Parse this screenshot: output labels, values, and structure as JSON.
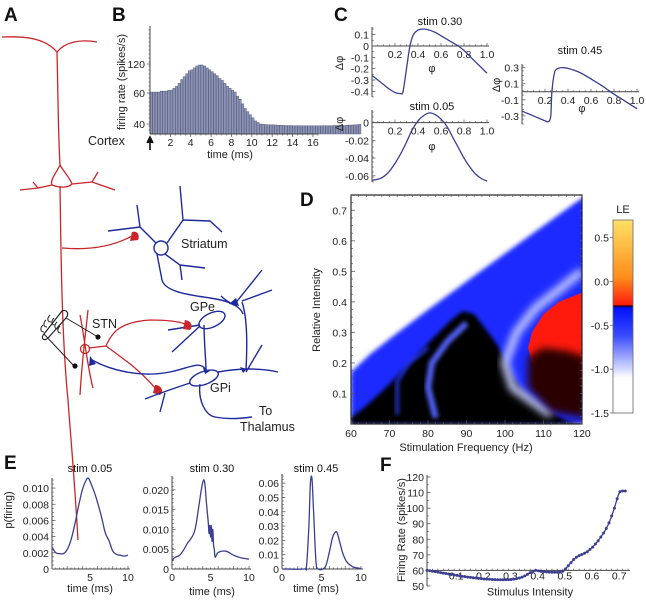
{
  "figure": {
    "panel_letters": [
      "A",
      "B",
      "C",
      "D",
      "E",
      "F"
    ]
  },
  "diagram_A": {
    "labels": {
      "cortex": "Cortex",
      "striatum": "Striatum",
      "gpe": "GPe",
      "stn": "STN",
      "gpi": "GPi",
      "to": "To",
      "thalamus": "Thalamus"
    },
    "colors": {
      "excitatory": "#c8262b",
      "inhibitory": "#1d2a9c",
      "electrode": "#222222"
    }
  },
  "chart_data": [
    {
      "id": "B",
      "type": "bar",
      "title": "",
      "xlabel": "time (ms)",
      "ylabel": "firing rate (spikes/s)",
      "xlim": [
        0,
        16.5
      ],
      "x_ticks": [
        "2",
        "4",
        "6",
        "8",
        "10",
        "12",
        "14",
        "16"
      ],
      "y_ticks": [
        "40",
        "60",
        "120"
      ],
      "y_tick_values": [
        40,
        60,
        120
      ],
      "stimulus_marker": "arrow at t=0",
      "bar_color": "#8c93b6",
      "bin_width": 0.25,
      "values": [
        62,
        62,
        62,
        62,
        64,
        64,
        64,
        66,
        66,
        70,
        74,
        80,
        88,
        94,
        100,
        106,
        108,
        112,
        116,
        118,
        118,
        116,
        112,
        108,
        104,
        100,
        96,
        90,
        86,
        80,
        74,
        70,
        66,
        62,
        58,
        56,
        53,
        50,
        48,
        46,
        44,
        42,
        41,
        40,
        38,
        37,
        36,
        35,
        35,
        34,
        33,
        33,
        32,
        31,
        31,
        31,
        30,
        30,
        30,
        30,
        29,
        29,
        29,
        30,
        29,
        29,
        29,
        30,
        30,
        30,
        30,
        30,
        31,
        31,
        31,
        32,
        31,
        33,
        34,
        34,
        35,
        36,
        38
      ]
    },
    {
      "id": "C-stim-0.30",
      "type": "line",
      "title": "stim 0.30",
      "xlabel": "φ",
      "ylabel": "Δφ",
      "xlim": [
        0,
        1.0
      ],
      "ylim": [
        -0.45,
        0.15
      ],
      "x_ticks": [
        "0.2",
        "0.4",
        "0.6",
        "0.8",
        "1.0"
      ],
      "y_ticks": [
        "0.1",
        "0",
        "-0.1",
        "-0.2",
        "-0.3",
        "-0.4"
      ],
      "x": [
        0,
        0.05,
        0.1,
        0.15,
        0.2,
        0.25,
        0.27,
        0.3,
        0.33,
        0.36,
        0.4,
        0.45,
        0.5,
        0.55,
        0.6,
        0.65,
        0.7,
        0.75,
        0.8,
        0.85,
        0.9,
        0.95,
        1.0
      ],
      "y": [
        -0.26,
        -0.3,
        -0.34,
        -0.38,
        -0.41,
        -0.42,
        -0.4,
        -0.2,
        0.0,
        0.1,
        0.14,
        0.15,
        0.14,
        0.12,
        0.09,
        0.06,
        0.03,
        0.0,
        -0.04,
        -0.09,
        -0.14,
        -0.19,
        -0.24
      ]
    },
    {
      "id": "C-stim-0.05",
      "type": "line",
      "title": "stim 0.05",
      "xlabel": "φ",
      "ylabel": "Δφ",
      "xlim": [
        0,
        1.0
      ],
      "ylim": [
        -0.067,
        0.012
      ],
      "x_ticks": [
        "0.2",
        "0.4",
        "0.6",
        "0.8",
        "1.0"
      ],
      "y_ticks": [
        "0",
        "-0.02",
        "-0.04",
        "-0.06"
      ],
      "x": [
        0,
        0.05,
        0.1,
        0.15,
        0.2,
        0.25,
        0.3,
        0.35,
        0.4,
        0.45,
        0.5,
        0.55,
        0.6,
        0.65,
        0.7,
        0.75,
        0.8,
        0.85,
        0.9,
        0.95,
        1.0
      ],
      "y": [
        -0.065,
        -0.064,
        -0.061,
        -0.055,
        -0.046,
        -0.035,
        -0.022,
        -0.008,
        0.002,
        0.008,
        0.011,
        0.009,
        0.004,
        -0.004,
        -0.016,
        -0.028,
        -0.04,
        -0.05,
        -0.058,
        -0.063,
        -0.066
      ]
    },
    {
      "id": "C-stim-0.45",
      "type": "line",
      "title": "stim 0.45",
      "xlabel": "φ",
      "ylabel": "Δφ",
      "xlim": [
        0,
        1.0
      ],
      "ylim": [
        -0.4,
        0.32
      ],
      "x_ticks": [
        "0.2",
        "0.4",
        "0.6",
        "0.8",
        "1.0"
      ],
      "y_ticks": [
        "0.3",
        "0.1",
        "-0.1",
        "-0.3"
      ],
      "x": [
        0,
        0.05,
        0.1,
        0.15,
        0.2,
        0.23,
        0.25,
        0.26,
        0.28,
        0.3,
        0.35,
        0.4,
        0.5,
        0.6,
        0.7,
        0.75,
        0.8,
        0.9,
        1.0
      ],
      "y": [
        -0.24,
        -0.27,
        -0.3,
        -0.33,
        -0.36,
        -0.37,
        -0.3,
        0.0,
        0.22,
        0.28,
        0.3,
        0.29,
        0.24,
        0.16,
        0.07,
        0.02,
        -0.03,
        -0.12,
        -0.21
      ]
    },
    {
      "id": "D",
      "type": "heatmap",
      "title": "",
      "xlabel": "Stimulation Frequency (Hz)",
      "ylabel": "Relative Intensity",
      "xlim": [
        60,
        120
      ],
      "ylim": [
        0,
        0.75
      ],
      "x_ticks": [
        "60",
        "70",
        "80",
        "90",
        "100",
        "110",
        "120"
      ],
      "y_ticks": [
        "0.1",
        "0.2",
        "0.3",
        "0.4",
        "0.5",
        "0.6",
        "0.7"
      ],
      "colorbar": {
        "label": "LE",
        "range": [
          -1.5,
          0.7
        ],
        "ticks": [
          "0.5",
          "0.0",
          "-0.5",
          "-1.0",
          "-1.5"
        ],
        "colors": {
          "high": "#ffe066",
          "mid_pos": "#ff8c1a",
          "zero_pos": "#ff1a0d",
          "zero_neg": "#0010ff",
          "neg": "#8a95ff",
          "low": "#ffffff"
        }
      },
      "regions": [
        {
          "description": "white (LE ≤ -1.0) above boundary",
          "boundary_intensity_at_60Hz": 0.17,
          "boundary_intensity_at_120Hz": 0.74
        },
        {
          "description": "blue band (LE -1 to 0)"
        },
        {
          "description": "red region (LE > 0)",
          "freq_range": [
            107,
            120
          ],
          "intensity_range": [
            0.12,
            0.42
          ]
        },
        {
          "description": "black (LE ≈ 0) lower region"
        }
      ]
    },
    {
      "id": "E-stim-0.05",
      "type": "line",
      "title": "stim 0.05",
      "xlabel": "time (ms)",
      "ylabel": "p(firing)",
      "xlim": [
        0,
        10
      ],
      "ylim": [
        0,
        0.011
      ],
      "x_ticks": [
        "5",
        "10"
      ],
      "y_ticks": [
        "0",
        "0.002",
        "0.004",
        "0.006",
        "0.008",
        "0.010"
      ],
      "x": [
        0,
        0.5,
        1,
        1.5,
        2,
        2.5,
        3,
        3.5,
        4,
        4.5,
        4.8,
        5.2,
        5.6,
        6,
        6.5,
        7,
        7.5,
        8,
        8.5,
        9,
        9.5,
        10
      ],
      "y": [
        0.0027,
        0.002,
        0.0019,
        0.0019,
        0.0024,
        0.0036,
        0.0055,
        0.0078,
        0.0098,
        0.011,
        0.0112,
        0.0104,
        0.0094,
        0.0082,
        0.0065,
        0.0045,
        0.0035,
        0.0022,
        0.0018,
        0.0017,
        0.0016,
        0.0017
      ]
    },
    {
      "id": "E-stim-0.30",
      "type": "line",
      "title": "stim 0.30",
      "xlabel": "time (ms)",
      "ylabel": "",
      "xlim": [
        0,
        10
      ],
      "ylim": [
        0,
        0.023
      ],
      "x_ticks": [
        "0",
        "5",
        "10"
      ],
      "y_ticks": [
        "0",
        "0.005",
        "0.010",
        "0.015",
        "0.020"
      ],
      "x": [
        0,
        0.3,
        1,
        1.5,
        2,
        2.5,
        3,
        3.5,
        3.8,
        4.1,
        4.3,
        4.5,
        4.7,
        4.8,
        4.9,
        5.0,
        5.1,
        5.2,
        5.3,
        5.4,
        5.5,
        5.6,
        6,
        7,
        8,
        9,
        10
      ],
      "y": [
        0.002,
        0.0028,
        0.0035,
        0.0048,
        0.0065,
        0.0078,
        0.01,
        0.016,
        0.02,
        0.0225,
        0.021,
        0.016,
        0.012,
        0.009,
        0.011,
        0.008,
        0.011,
        0.007,
        0.01,
        0.006,
        0.005,
        0.003,
        0.0042,
        0.0045,
        0.0035,
        0.0028,
        0.0025
      ]
    },
    {
      "id": "E-stim-0.45",
      "type": "line",
      "title": "stim 0.45",
      "xlabel": "time (ms)",
      "ylabel": "",
      "xlim": [
        0,
        10
      ],
      "ylim": [
        0,
        0.065
      ],
      "x_ticks": [
        "0",
        "5",
        "10"
      ],
      "y_ticks": [
        "0",
        "0.01",
        "0.02",
        "0.03",
        "0.04",
        "0.05",
        "0.06"
      ],
      "x": [
        0,
        2.8,
        3.1,
        3.4,
        3.6,
        3.8,
        4.0,
        4.3,
        4.6,
        5.2,
        5.6,
        6.0,
        6.4,
        6.8,
        7.0,
        7.3,
        7.7,
        8.2,
        9,
        10
      ],
      "y": [
        0,
        0,
        0.002,
        0.03,
        0.06,
        0.063,
        0.04,
        0.005,
        0,
        0,
        0.003,
        0.012,
        0.022,
        0.026,
        0.025,
        0.019,
        0.011,
        0.005,
        0.0015,
        0.0003
      ]
    },
    {
      "id": "F",
      "type": "line",
      "title": "",
      "xlabel": "Stimulus Intensity",
      "ylabel": "Firing Rate (spikes/s)",
      "xlim": [
        0,
        0.74
      ],
      "ylim": [
        50,
        120
      ],
      "x_ticks": [
        "0.1",
        "0.2",
        "0.3",
        "0.4",
        "0.5",
        "0.6",
        "0.7"
      ],
      "y_ticks": [
        "50",
        "60",
        "70",
        "80",
        "90",
        "100",
        "110",
        "120"
      ],
      "markers": true,
      "x": [
        0,
        0.01,
        0.02,
        0.03,
        0.04,
        0.05,
        0.06,
        0.07,
        0.08,
        0.09,
        0.1,
        0.11,
        0.12,
        0.13,
        0.14,
        0.15,
        0.16,
        0.17,
        0.18,
        0.19,
        0.2,
        0.21,
        0.22,
        0.23,
        0.24,
        0.25,
        0.26,
        0.27,
        0.28,
        0.29,
        0.3,
        0.31,
        0.32,
        0.33,
        0.34,
        0.35,
        0.36,
        0.37,
        0.38,
        0.39,
        0.4,
        0.41,
        0.42,
        0.43,
        0.44,
        0.45,
        0.46,
        0.47,
        0.48,
        0.49,
        0.5,
        0.51,
        0.52,
        0.53,
        0.54,
        0.55,
        0.56,
        0.57,
        0.58,
        0.59,
        0.6,
        0.61,
        0.62,
        0.63,
        0.64,
        0.65,
        0.66,
        0.67,
        0.68,
        0.69,
        0.7,
        0.71,
        0.72,
        0.73
      ],
      "y": [
        60,
        59.8,
        59.5,
        59.2,
        58.9,
        58.6,
        58.3,
        58,
        57.7,
        57.4,
        57.1,
        56.8,
        56.5,
        56.2,
        56,
        55.7,
        55.5,
        55.3,
        55.1,
        54.9,
        54.7,
        54.5,
        54.4,
        54.3,
        54.2,
        54.1,
        54,
        54,
        54,
        54,
        54.1,
        54.2,
        54.4,
        54.7,
        55.1,
        55.7,
        56.5,
        57.5,
        58.6,
        59.5,
        60,
        59.7,
        59.4,
        59.2,
        59,
        58.9,
        58.8,
        58.8,
        58.8,
        59,
        59.5,
        61,
        63,
        65,
        67,
        68.5,
        69.5,
        70.2,
        71,
        72,
        73.5,
        75,
        77,
        79,
        81.5,
        84,
        87,
        90.5,
        95,
        100,
        106,
        110.5,
        111,
        111
      ]
    }
  ]
}
